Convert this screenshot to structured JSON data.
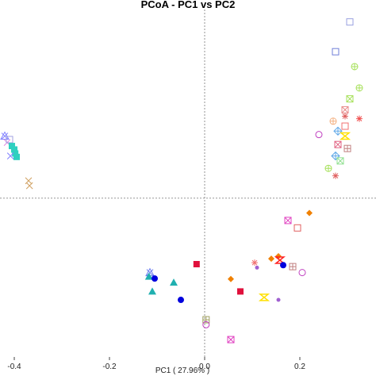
{
  "chart_data": {
    "type": "scatter",
    "title": "PCoA - PC1 vs PC2",
    "xlabel": "PC1 ( 27.96% )",
    "ylabel": "",
    "xlim": [
      -0.43,
      0.36
    ],
    "ylim": [
      -0.32,
      0.38
    ],
    "xticks": [
      -0.4,
      -0.2,
      0.0,
      0.2
    ],
    "xtick_labels": [
      "-0.4",
      "-0.2",
      "0.0",
      "0.2"
    ],
    "reference_lines": {
      "x": 0,
      "y": 0
    },
    "points": [
      {
        "x": 0.305,
        "y": 0.355,
        "marker": "open-square",
        "color": "#9aa0e0"
      },
      {
        "x": 0.275,
        "y": 0.295,
        "marker": "open-square",
        "color": "#6f7fd8"
      },
      {
        "x": 0.315,
        "y": 0.265,
        "marker": "circle-plus",
        "color": "#a6e05a"
      },
      {
        "x": 0.325,
        "y": 0.222,
        "marker": "circle-plus",
        "color": "#a6e05a"
      },
      {
        "x": 0.305,
        "y": 0.2,
        "marker": "box-x",
        "color": "#a6e05a"
      },
      {
        "x": 0.295,
        "y": 0.178,
        "marker": "box-x",
        "color": "#e88a8a"
      },
      {
        "x": 0.295,
        "y": 0.165,
        "marker": "asterisk",
        "color": "#e06060"
      },
      {
        "x": 0.27,
        "y": 0.155,
        "marker": "circle-plus",
        "color": "#f4b080"
      },
      {
        "x": 0.325,
        "y": 0.16,
        "marker": "asterisk",
        "color": "#f05050"
      },
      {
        "x": 0.295,
        "y": 0.145,
        "marker": "open-square",
        "color": "#f07070"
      },
      {
        "x": 0.28,
        "y": 0.135,
        "marker": "diamond-plus",
        "color": "#60a8e8"
      },
      {
        "x": 0.295,
        "y": 0.125,
        "marker": "hourglass",
        "color": "#ffe000"
      },
      {
        "x": 0.24,
        "y": 0.128,
        "marker": "open-circle",
        "color": "#c040c0"
      },
      {
        "x": 0.28,
        "y": 0.108,
        "marker": "box-x",
        "color": "#e06080"
      },
      {
        "x": 0.3,
        "y": 0.1,
        "marker": "box-plus",
        "color": "#c08080"
      },
      {
        "x": 0.275,
        "y": 0.085,
        "marker": "diamond-plus",
        "color": "#60a8e8"
      },
      {
        "x": 0.285,
        "y": 0.075,
        "marker": "box-x",
        "color": "#90e090"
      },
      {
        "x": 0.26,
        "y": 0.06,
        "marker": "circle-plus",
        "color": "#a6e05a"
      },
      {
        "x": 0.275,
        "y": 0.045,
        "marker": "asterisk",
        "color": "#e06060"
      },
      {
        "x": 0.22,
        "y": -0.03,
        "marker": "filled-diamond",
        "color": "#f08000"
      },
      {
        "x": 0.175,
        "y": -0.045,
        "marker": "box-x",
        "color": "#e040c0"
      },
      {
        "x": 0.195,
        "y": -0.06,
        "marker": "open-square",
        "color": "#e06060"
      },
      {
        "x": 0.155,
        "y": -0.117,
        "marker": "filled-diamond",
        "color": "#f08000"
      },
      {
        "x": 0.14,
        "y": -0.122,
        "marker": "filled-diamond",
        "color": "#f08000"
      },
      {
        "x": 0.158,
        "y": -0.125,
        "marker": "hourglass",
        "color": "#ff2020"
      },
      {
        "x": 0.105,
        "y": -0.13,
        "marker": "asterisk",
        "color": "#f07070"
      },
      {
        "x": 0.11,
        "y": -0.14,
        "marker": "small-dot",
        "color": "#a060d0"
      },
      {
        "x": 0.165,
        "y": -0.135,
        "marker": "filled-circle",
        "color": "#0000dd"
      },
      {
        "x": 0.185,
        "y": -0.138,
        "marker": "box-plus",
        "color": "#c08080"
      },
      {
        "x": 0.205,
        "y": -0.15,
        "marker": "open-circle",
        "color": "#c040c0"
      },
      {
        "x": 0.055,
        "y": -0.163,
        "marker": "filled-diamond",
        "color": "#f08000"
      },
      {
        "x": 0.075,
        "y": -0.188,
        "marker": "filled-square",
        "color": "#e0103c"
      },
      {
        "x": 0.125,
        "y": -0.2,
        "marker": "hourglass",
        "color": "#ffe000"
      },
      {
        "x": 0.155,
        "y": -0.205,
        "marker": "small-dot",
        "color": "#a060d0"
      },
      {
        "x": -0.017,
        "y": -0.133,
        "marker": "filled-square",
        "color": "#e0103c"
      },
      {
        "x": -0.115,
        "y": -0.15,
        "marker": "triangle-x",
        "color": "#7080f0"
      },
      {
        "x": -0.117,
        "y": -0.158,
        "marker": "filled-triangle",
        "color": "#20b0b0"
      },
      {
        "x": -0.105,
        "y": -0.162,
        "marker": "filled-circle",
        "color": "#0000dd"
      },
      {
        "x": -0.065,
        "y": -0.17,
        "marker": "filled-triangle",
        "color": "#20b0b0"
      },
      {
        "x": -0.11,
        "y": -0.188,
        "marker": "filled-triangle",
        "color": "#20b0b0"
      },
      {
        "x": -0.05,
        "y": -0.205,
        "marker": "filled-circle",
        "color": "#0000dd"
      },
      {
        "x": 0.003,
        "y": -0.245,
        "marker": "box-plus",
        "color": "#a0a060"
      },
      {
        "x": 0.003,
        "y": -0.255,
        "marker": "open-circle",
        "color": "#c040c0"
      },
      {
        "x": 0.055,
        "y": -0.285,
        "marker": "box-x",
        "color": "#e040c0"
      },
      {
        "x": -0.42,
        "y": 0.125,
        "marker": "triangle-x",
        "color": "#8080ff"
      },
      {
        "x": -0.415,
        "y": 0.112,
        "marker": "x-cross",
        "color": "#e080e0"
      },
      {
        "x": -0.41,
        "y": 0.118,
        "marker": "open-square",
        "color": "#a0a0e0"
      },
      {
        "x": -0.405,
        "y": 0.105,
        "marker": "filled-square",
        "color": "#30d0c0"
      },
      {
        "x": -0.4,
        "y": 0.098,
        "marker": "filled-square",
        "color": "#30d0c0"
      },
      {
        "x": -0.398,
        "y": 0.09,
        "marker": "filled-square",
        "color": "#30d0c0"
      },
      {
        "x": -0.395,
        "y": 0.083,
        "marker": "filled-square",
        "color": "#30d0c0"
      },
      {
        "x": -0.408,
        "y": 0.085,
        "marker": "x-cross",
        "color": "#8080ff"
      },
      {
        "x": -0.37,
        "y": 0.035,
        "marker": "x-cross",
        "color": "#d0a060"
      },
      {
        "x": -0.368,
        "y": 0.025,
        "marker": "x-cross",
        "color": "#d0a060"
      }
    ]
  }
}
